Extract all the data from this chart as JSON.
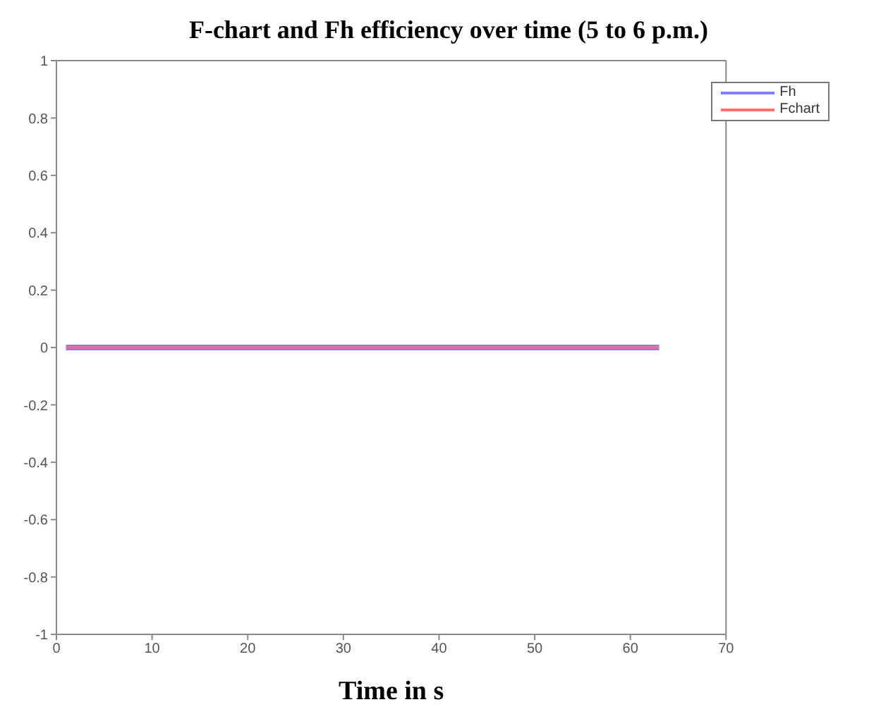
{
  "chart_data": {
    "type": "line",
    "title": "F-chart and Fh efficiency over time (5 to 6 p.m.)",
    "xlabel": "Time in s",
    "x": [
      1,
      63
    ],
    "series": [
      {
        "name": "Fh",
        "color": "#8080ff",
        "values": [
          0,
          0
        ]
      },
      {
        "name": "Fchart",
        "color": "#ff7070",
        "values": [
          0,
          0
        ]
      }
    ],
    "xlim": [
      0,
      70
    ],
    "xticks": [
      0,
      10,
      20,
      30,
      40,
      50,
      60,
      70
    ],
    "ylim": [
      -1,
      1
    ],
    "yticks": [
      -1,
      -0.8,
      -0.6,
      -0.4,
      -0.2,
      0,
      0.2,
      0.4,
      0.6,
      0.8,
      1
    ],
    "grid": false,
    "legend": "top right",
    "marker": "none",
    "line_style": "solid"
  }
}
